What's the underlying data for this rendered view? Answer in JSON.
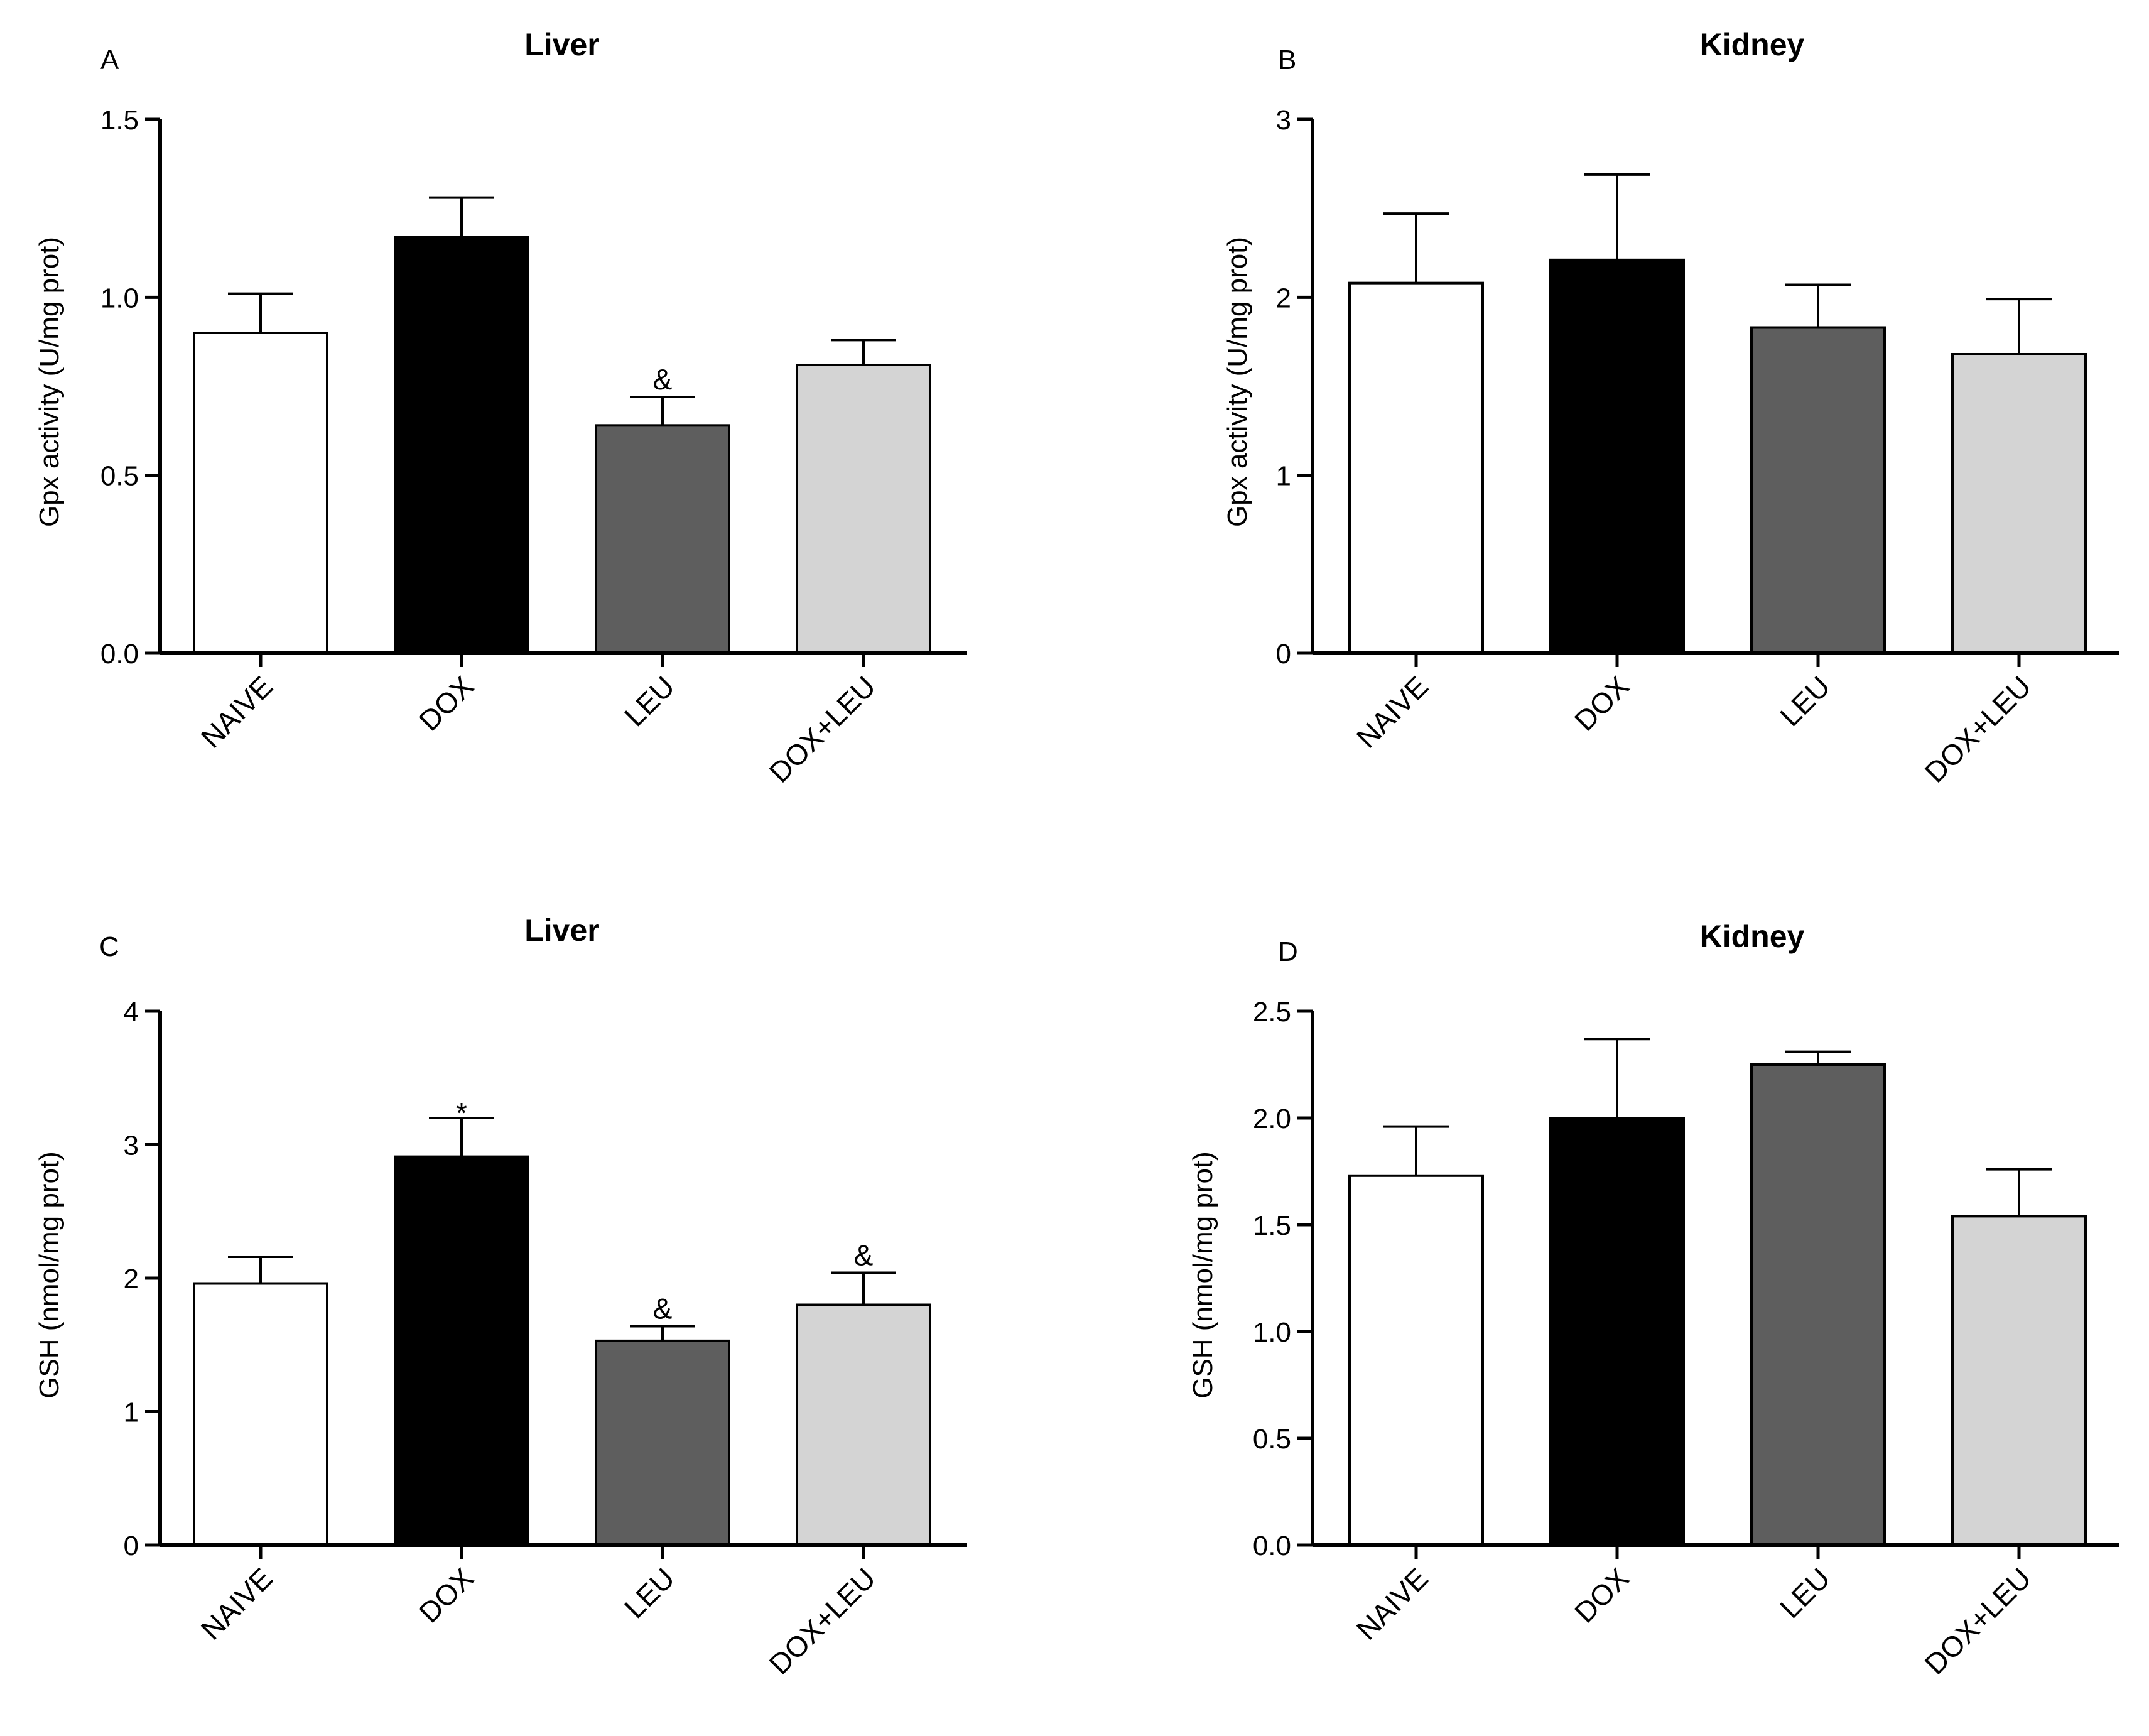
{
  "figure": {
    "categories": [
      "NAIVE",
      "DOX",
      "LEU",
      "DOX+LEU"
    ],
    "bar_colors": [
      "#ffffff",
      "#000000",
      "#5e5e5e",
      "#d4d4d4"
    ],
    "axis_color": "#000000"
  },
  "chart_data": [
    {
      "type": "bar",
      "panel": "A",
      "title": "Liver",
      "ylabel": "Gpx activity (U/mg prot)",
      "xlabel": "",
      "categories": [
        "NAIVE",
        "DOX",
        "LEU",
        "DOX+LEU"
      ],
      "values": [
        0.9,
        1.17,
        0.64,
        0.81
      ],
      "errors": [
        0.11,
        0.11,
        0.08,
        0.07
      ],
      "annotations": [
        "",
        "",
        "&",
        ""
      ],
      "ylim": [
        0,
        1.5
      ],
      "yticks": [
        0.0,
        0.5,
        1.0,
        1.5
      ],
      "ytick_labels": [
        "0.0",
        "0.5",
        "1.0",
        "1.5"
      ]
    },
    {
      "type": "bar",
      "panel": "B",
      "title": "Kidney",
      "ylabel": "Gpx activity (U/mg prot)",
      "xlabel": "",
      "categories": [
        "NAIVE",
        "DOX",
        "LEU",
        "DOX+LEU"
      ],
      "values": [
        2.08,
        2.21,
        1.83,
        1.68
      ],
      "errors": [
        0.39,
        0.48,
        0.24,
        0.31
      ],
      "annotations": [
        "",
        "",
        "",
        ""
      ],
      "ylim": [
        0,
        3
      ],
      "yticks": [
        0,
        1,
        2,
        3
      ],
      "ytick_labels": [
        "0",
        "1",
        "2",
        "3"
      ]
    },
    {
      "type": "bar",
      "panel": "C",
      "title": "Liver",
      "ylabel": "GSH (nmol/mg prot)",
      "xlabel": "",
      "categories": [
        "NAIVE",
        "DOX",
        "LEU",
        "DOX+LEU"
      ],
      "values": [
        1.96,
        2.91,
        1.53,
        1.8
      ],
      "errors": [
        0.2,
        0.29,
        0.11,
        0.24
      ],
      "annotations": [
        "",
        "*",
        "&",
        "&"
      ],
      "ylim": [
        0,
        4
      ],
      "yticks": [
        0,
        1,
        2,
        3,
        4
      ],
      "ytick_labels": [
        "0",
        "1",
        "2",
        "3",
        "4"
      ]
    },
    {
      "type": "bar",
      "panel": "D",
      "title": "Kidney",
      "ylabel": "GSH (nmol/mg prot)",
      "xlabel": "",
      "categories": [
        "NAIVE",
        "DOX",
        "LEU",
        "DOX+LEU"
      ],
      "values": [
        1.73,
        2.0,
        2.25,
        1.54
      ],
      "errors": [
        0.23,
        0.37,
        0.06,
        0.22
      ],
      "annotations": [
        "",
        "",
        "",
        ""
      ],
      "ylim": [
        0,
        2.5
      ],
      "yticks": [
        0.0,
        0.5,
        1.0,
        1.5,
        2.0,
        2.5
      ],
      "ytick_labels": [
        "0.0",
        "0.5",
        "1.0",
        "1.5",
        "2.0",
        "2.5"
      ]
    }
  ]
}
